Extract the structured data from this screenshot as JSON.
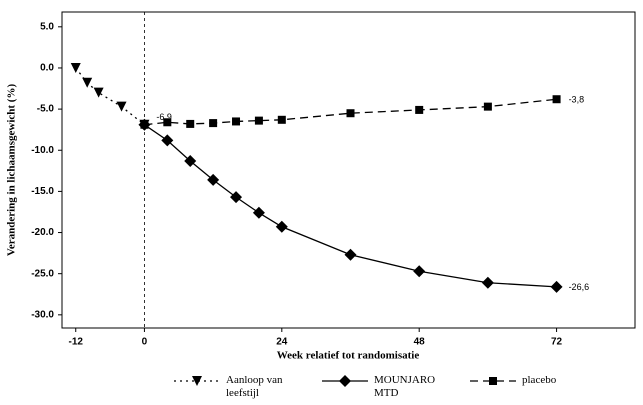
{
  "chart_data": {
    "type": "line",
    "x_label": "Week relatief tot randomisatie",
    "y_label": "Verandering in lichaamsgewicht (%)",
    "xlim": [
      -14.4,
      85.7
    ],
    "ylim": [
      -31.6,
      6.8
    ],
    "xticks": [
      -12,
      0,
      24,
      48,
      72
    ],
    "yticks": [
      {
        "value": 5,
        "label": "5.0"
      },
      {
        "value": 0,
        "label": "0.0"
      },
      {
        "value": -5,
        "label": "-5.0"
      },
      {
        "value": -10,
        "label": "-10.0"
      },
      {
        "value": -15,
        "label": "-15.0"
      },
      {
        "value": -20,
        "label": "-20.0"
      },
      {
        "value": -25,
        "label": "-25.0"
      },
      {
        "value": -30,
        "label": "-30.0"
      }
    ],
    "series": [
      {
        "name": "Aanloop van leefstijl",
        "color": "#000000",
        "linestyle": "dotted",
        "marker": "triangle-down",
        "x": [
          -12,
          -10,
          -8,
          -4,
          0
        ],
        "values": [
          0.0,
          -1.8,
          -3.0,
          -4.7,
          -6.9
        ]
      },
      {
        "name": "MOUNJARO MTD",
        "color": "#000000",
        "linestyle": "solid",
        "marker": "diamond",
        "x": [
          0,
          4,
          8,
          12,
          16,
          20,
          24,
          36,
          48,
          60,
          72
        ],
        "values": [
          -6.9,
          -8.8,
          -11.3,
          -13.6,
          -15.7,
          -17.6,
          -19.3,
          -22.7,
          -24.7,
          -26.1,
          -26.6
        ]
      },
      {
        "name": "placebo",
        "color": "#000000",
        "linestyle": "dashed",
        "marker": "square",
        "x": [
          0,
          4,
          8,
          12,
          16,
          20,
          24,
          36,
          48,
          60,
          72
        ],
        "values": [
          -6.9,
          -6.6,
          -6.8,
          -6.7,
          -6.5,
          -6.4,
          -6.3,
          -5.5,
          -5.1,
          -4.7,
          -3.8
        ]
      }
    ],
    "annotations": [
      {
        "text": "-6,9",
        "x": 0,
        "y": -6.9
      },
      {
        "text": "-3,8",
        "x": 72,
        "y": -3.8
      },
      {
        "text": "-26,6",
        "x": 72,
        "y": -26.6
      }
    ]
  }
}
